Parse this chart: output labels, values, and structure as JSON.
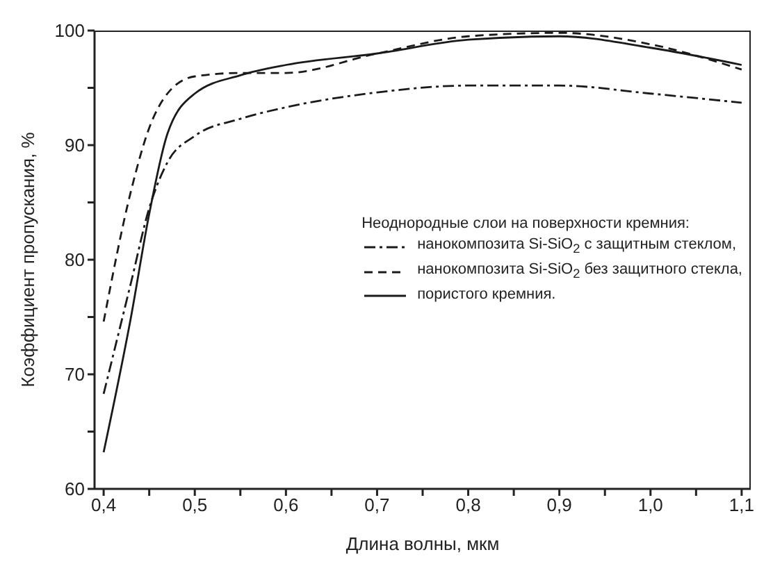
{
  "chart_data": {
    "type": "line",
    "xlabel": "Длина волны, мкм",
    "ylabel": "Коэффициент пропускания, %",
    "legend_title": "Неоднородные слои на поверхности кремния:",
    "legend": "right",
    "grid": false,
    "marker": "none",
    "xlim": [
      0.39,
      1.11
    ],
    "ylim": [
      60,
      100
    ],
    "xticks": [
      {
        "value": 0.4,
        "label": "0,4"
      },
      {
        "value": 0.45,
        "label": null
      },
      {
        "value": 0.5,
        "label": "0,5"
      },
      {
        "value": 0.55,
        "label": null
      },
      {
        "value": 0.6,
        "label": "0,6"
      },
      {
        "value": 0.65,
        "label": null
      },
      {
        "value": 0.7,
        "label": "0,7"
      },
      {
        "value": 0.75,
        "label": null
      },
      {
        "value": 0.8,
        "label": "0,8"
      },
      {
        "value": 0.85,
        "label": null
      },
      {
        "value": 0.9,
        "label": "0,9"
      },
      {
        "value": 0.95,
        "label": null
      },
      {
        "value": 1.0,
        "label": "1,0"
      },
      {
        "value": 1.05,
        "label": null
      },
      {
        "value": 1.1,
        "label": "1,1"
      }
    ],
    "yticks": [
      60,
      {
        "value": 65,
        "label": null
      },
      70,
      {
        "value": 75,
        "label": null
      },
      80,
      {
        "value": 85,
        "label": null
      },
      90,
      {
        "value": 95,
        "label": null
      },
      100
    ],
    "x": [
      0.4,
      0.43,
      0.45,
      0.47,
      0.5,
      0.55,
      0.6,
      0.7,
      0.8,
      0.9,
      1.0,
      1.1
    ],
    "series": [
      {
        "name": "нанокомпозита Si-SiO$_{2}$ с защитным стеклом,",
        "color": "#1a1a1a",
        "line_style": "dashdot",
        "values": [
          68.3,
          78,
          84.5,
          88.5,
          90.8,
          92.3,
          93.3,
          94.6,
          95.2,
          95.2,
          94.5,
          93.7
        ]
      },
      {
        "name": "нанокомпозита Si-SiO$_{2}$ без защитного стекла,",
        "color": "#1a1a1a",
        "line_style": "dashed",
        "values": [
          74.6,
          86,
          91.5,
          94.5,
          96,
          96.3,
          96.3,
          98,
          99.5,
          99.8,
          98.8,
          96.6
        ]
      },
      {
        "name": "пористого кремния.",
        "color": "#1a1a1a",
        "line_style": "solid",
        "values": [
          63.2,
          75,
          84,
          91,
          94.5,
          96.1,
          97,
          98,
          99.2,
          99.5,
          98.5,
          97
        ]
      }
    ]
  }
}
